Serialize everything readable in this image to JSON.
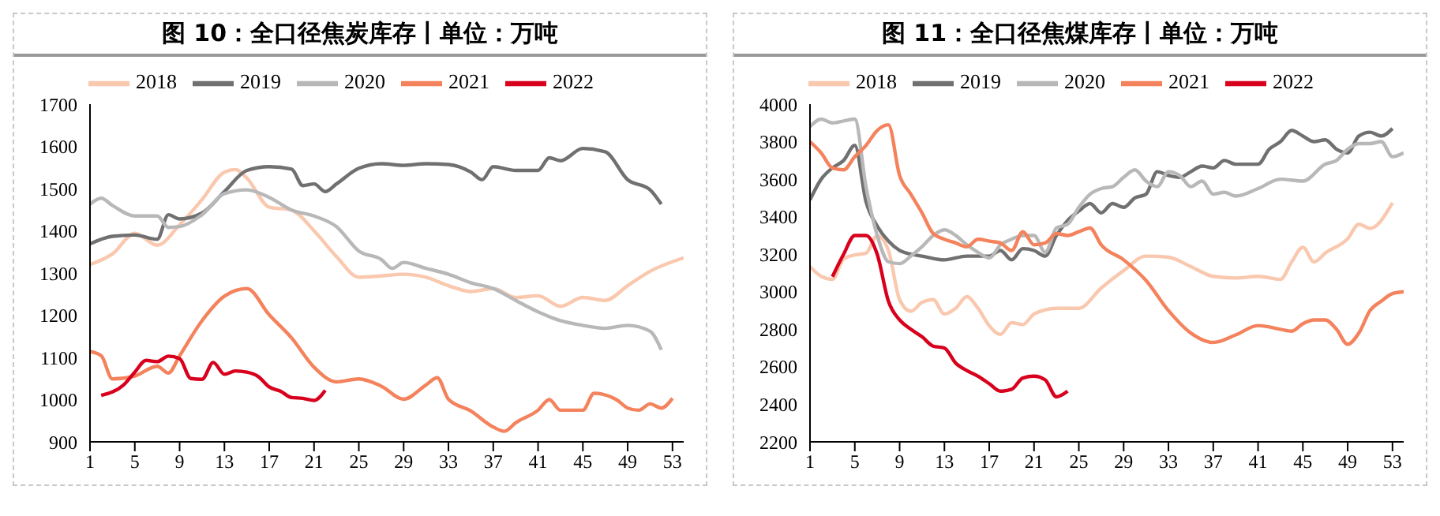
{
  "chart_data": [
    {
      "type": "line",
      "title": "图 10：全口径焦炭库存丨单位：万吨",
      "xlim": [
        1,
        54
      ],
      "xticks": [
        1,
        5,
        9,
        13,
        17,
        21,
        25,
        29,
        33,
        37,
        41,
        45,
        49,
        53
      ],
      "ylim": [
        900,
        1700
      ],
      "yticks": [
        900,
        1000,
        1100,
        1200,
        1300,
        1400,
        1500,
        1600,
        1700
      ],
      "grid": false,
      "legend": "top",
      "marker": "none",
      "line_style": "solid",
      "series": [
        {
          "name": "2018",
          "color": "#f9c8ae",
          "x": [
            1,
            3,
            5,
            7,
            9,
            11,
            13,
            14,
            15,
            17,
            19,
            21,
            23,
            25,
            27,
            29,
            31,
            33,
            35,
            37,
            39,
            41,
            43,
            45,
            47,
            49,
            51,
            54
          ],
          "values": [
            1320,
            1345,
            1394,
            1366,
            1414,
            1474,
            1539,
            1545,
            1525,
            1456,
            1449,
            1400,
            1339,
            1290,
            1293,
            1297,
            1290,
            1270,
            1256,
            1263,
            1242,
            1246,
            1221,
            1242,
            1235,
            1270,
            1304,
            1336
          ]
        },
        {
          "name": "2019",
          "color": "#707070",
          "x": [
            1,
            3,
            5,
            7,
            8,
            9,
            11,
            13,
            15,
            17,
            19,
            20,
            21,
            22,
            23,
            25,
            27,
            29,
            31,
            33,
            35,
            36,
            37,
            39,
            41,
            42,
            43,
            45,
            47,
            49,
            51,
            52
          ],
          "values": [
            1369,
            1387,
            1390,
            1380,
            1438,
            1428,
            1442,
            1493,
            1543,
            1552,
            1546,
            1507,
            1511,
            1493,
            1511,
            1548,
            1559,
            1555,
            1559,
            1557,
            1539,
            1521,
            1552,
            1543,
            1543,
            1573,
            1566,
            1595,
            1587,
            1521,
            1497,
            1463
          ]
        },
        {
          "name": "2020",
          "color": "#b8b8b8",
          "x": [
            1,
            2,
            3,
            5,
            7,
            8,
            9,
            11,
            13,
            15,
            17,
            19,
            21,
            23,
            25,
            27,
            28,
            29,
            31,
            33,
            35,
            37,
            39,
            41,
            43,
            45,
            47,
            49,
            51,
            52
          ],
          "values": [
            1463,
            1477,
            1460,
            1435,
            1435,
            1408,
            1410,
            1438,
            1488,
            1497,
            1479,
            1449,
            1435,
            1410,
            1352,
            1332,
            1311,
            1325,
            1311,
            1297,
            1277,
            1263,
            1235,
            1208,
            1187,
            1176,
            1169,
            1176,
            1162,
            1118
          ]
        },
        {
          "name": "2021",
          "color": "#f4825c",
          "x": [
            1,
            2,
            3,
            5,
            7,
            8,
            9,
            11,
            13,
            15,
            17,
            19,
            21,
            23,
            25,
            27,
            29,
            31,
            32,
            33,
            35,
            37,
            38,
            39,
            41,
            42,
            43,
            45,
            46,
            48,
            49,
            50,
            51,
            52,
            53
          ],
          "values": [
            1114,
            1104,
            1049,
            1056,
            1079,
            1063,
            1104,
            1187,
            1245,
            1263,
            1201,
            1146,
            1077,
            1042,
            1049,
            1032,
            1001,
            1035,
            1052,
            1001,
            973,
            935,
            925,
            945,
            975,
            1000,
            975,
            975,
            1015,
            1000,
            980,
            975,
            990,
            980,
            1003
          ]
        },
        {
          "name": "2022",
          "color": "#d8001c",
          "x": [
            2,
            4,
            5,
            6,
            7,
            8,
            9,
            10,
            11,
            12,
            13,
            14,
            15,
            16,
            17,
            18,
            19,
            20,
            21,
            22
          ],
          "values": [
            1010,
            1035,
            1065,
            1093,
            1090,
            1103,
            1097,
            1050,
            1048,
            1088,
            1060,
            1068,
            1065,
            1055,
            1030,
            1020,
            1005,
            1003,
            998,
            1022
          ]
        }
      ]
    },
    {
      "type": "line",
      "title": "图 11：全口径焦煤库存丨单位：万吨",
      "xlim": [
        1,
        54
      ],
      "xticks": [
        1,
        5,
        9,
        13,
        17,
        21,
        25,
        29,
        33,
        37,
        41,
        45,
        49,
        53
      ],
      "ylim": [
        2200,
        4000
      ],
      "yticks": [
        2200,
        2400,
        2600,
        2800,
        3000,
        3200,
        3400,
        3600,
        3800,
        4000
      ],
      "grid": false,
      "legend": "top",
      "marker": "none",
      "line_style": "solid",
      "series": [
        {
          "name": "2018",
          "color": "#f9c8ae",
          "x": [
            1,
            2,
            3,
            4,
            5,
            6,
            7,
            8,
            9,
            10,
            11,
            12,
            13,
            14,
            15,
            16,
            17,
            18,
            19,
            20,
            21,
            23,
            25,
            27,
            29,
            31,
            33,
            35,
            37,
            39,
            41,
            43,
            44,
            45,
            46,
            47,
            49,
            50,
            51,
            53
          ],
          "values": [
            3134,
            3082,
            3066,
            3175,
            3196,
            3206,
            3298,
            3221,
            2958,
            2896,
            2943,
            2958,
            2881,
            2912,
            2974,
            2912,
            2819,
            2773,
            2835,
            2825,
            2881,
            2912,
            2912,
            3020,
            3113,
            3190,
            3184,
            3134,
            3082,
            3073,
            3082,
            3066,
            3159,
            3237,
            3159,
            3206,
            3283,
            3360,
            3338,
            3474
          ]
        },
        {
          "name": "2019",
          "color": "#707070",
          "x": [
            1,
            2,
            3,
            4,
            5,
            6,
            7,
            8,
            9,
            10,
            11,
            13,
            15,
            17,
            18,
            19,
            20,
            21,
            22,
            23,
            24,
            25,
            26,
            27,
            28,
            29,
            30,
            31,
            32,
            33,
            34,
            35,
            36,
            37,
            38,
            39,
            41,
            42,
            43,
            44,
            45,
            46,
            47,
            48,
            49,
            50,
            51,
            52,
            53
          ],
          "values": [
            3490,
            3600,
            3660,
            3700,
            3780,
            3480,
            3350,
            3270,
            3220,
            3200,
            3190,
            3170,
            3190,
            3190,
            3220,
            3170,
            3230,
            3220,
            3190,
            3300,
            3380,
            3430,
            3470,
            3420,
            3470,
            3450,
            3500,
            3520,
            3640,
            3620,
            3610,
            3640,
            3670,
            3660,
            3700,
            3680,
            3680,
            3760,
            3800,
            3860,
            3830,
            3800,
            3810,
            3760,
            3740,
            3830,
            3850,
            3830,
            3870
          ]
        },
        {
          "name": "2020",
          "color": "#b8b8b8",
          "x": [
            1,
            2,
            3,
            4,
            5,
            6,
            7,
            8,
            9,
            10,
            11,
            12,
            13,
            14,
            15,
            16,
            17,
            18,
            19,
            20,
            21,
            22,
            23,
            24,
            25,
            26,
            27,
            28,
            29,
            30,
            31,
            32,
            33,
            34,
            35,
            36,
            37,
            38,
            39,
            41,
            43,
            45,
            47,
            48,
            49,
            50,
            51,
            52,
            53,
            54
          ],
          "values": [
            3880,
            3920,
            3900,
            3910,
            3920,
            3560,
            3300,
            3160,
            3150,
            3190,
            3240,
            3300,
            3330,
            3300,
            3250,
            3210,
            3180,
            3250,
            3280,
            3300,
            3300,
            3210,
            3340,
            3360,
            3450,
            3520,
            3550,
            3560,
            3610,
            3650,
            3590,
            3560,
            3640,
            3620,
            3560,
            3590,
            3520,
            3530,
            3510,
            3550,
            3600,
            3590,
            3680,
            3700,
            3760,
            3790,
            3790,
            3800,
            3720,
            3740
          ]
        },
        {
          "name": "2021",
          "color": "#f4825c",
          "x": [
            1,
            2,
            3,
            4,
            5,
            6,
            7,
            8,
            9,
            10,
            11,
            12,
            13,
            14,
            15,
            16,
            17,
            18,
            19,
            20,
            21,
            22,
            23,
            24,
            25,
            26,
            27,
            29,
            31,
            33,
            35,
            37,
            39,
            41,
            43,
            44,
            45,
            46,
            47,
            48,
            49,
            50,
            51,
            52,
            53,
            54
          ],
          "values": [
            3800,
            3740,
            3660,
            3650,
            3720,
            3780,
            3860,
            3890,
            3620,
            3520,
            3420,
            3310,
            3280,
            3260,
            3240,
            3280,
            3270,
            3260,
            3220,
            3320,
            3250,
            3260,
            3310,
            3300,
            3320,
            3340,
            3250,
            3170,
            3060,
            2900,
            2780,
            2730,
            2770,
            2820,
            2800,
            2790,
            2830,
            2850,
            2850,
            2800,
            2720,
            2780,
            2900,
            2950,
            2990,
            3000
          ]
        },
        {
          "name": "2022",
          "color": "#d8001c",
          "x": [
            3,
            4,
            5,
            6,
            7,
            8,
            9,
            10,
            11,
            12,
            13,
            14,
            15,
            16,
            17,
            18,
            19,
            20,
            21,
            22,
            23,
            24
          ],
          "values": [
            3080,
            3200,
            3300,
            3300,
            3200,
            2950,
            2850,
            2800,
            2760,
            2710,
            2700,
            2620,
            2580,
            2550,
            2510,
            2470,
            2480,
            2540,
            2550,
            2530,
            2440,
            2470
          ]
        }
      ]
    }
  ]
}
